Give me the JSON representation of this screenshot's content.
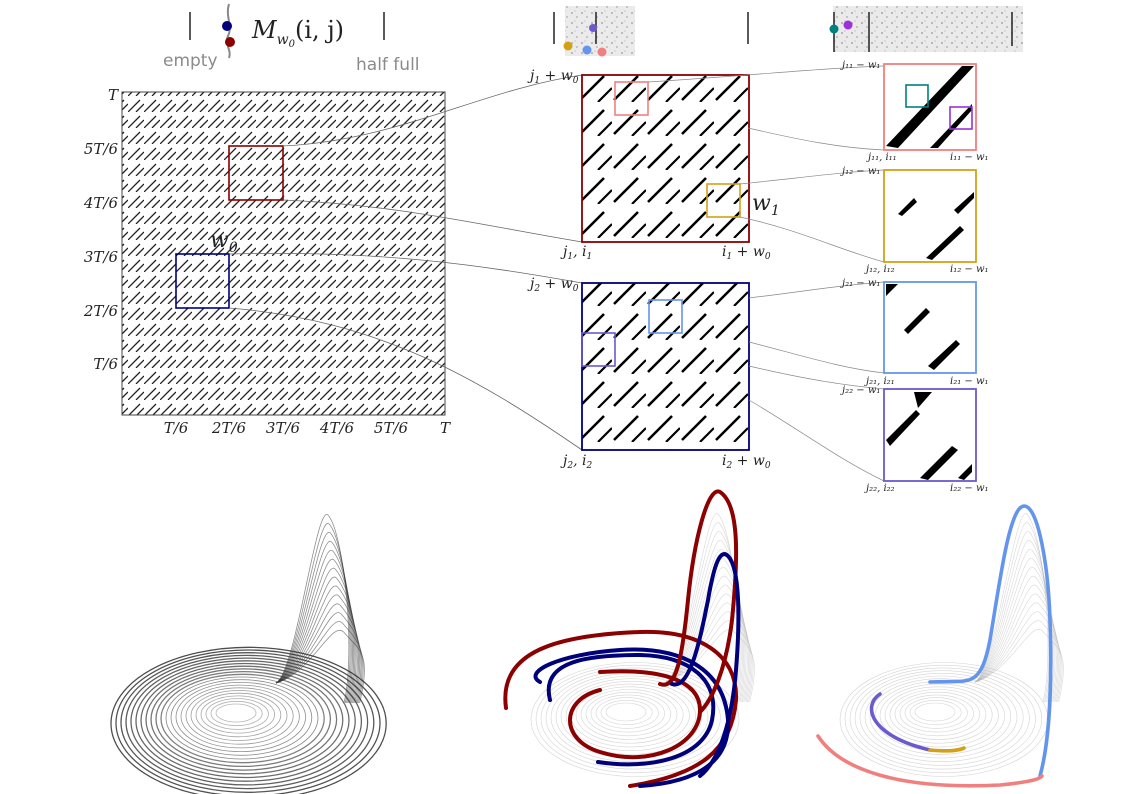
{
  "header": {
    "formula": "M",
    "formula_sub": "w",
    "formula_sub2": "0",
    "formula_args": "(i, j)",
    "empty_label": "empty",
    "half_full_label": "half full"
  },
  "main_matrix": {
    "y_ticks": [
      "T",
      "5T/6",
      "4T/6",
      "3T/6",
      "2T/6",
      "T/6"
    ],
    "x_ticks": [
      "T/6",
      "2T/6",
      "3T/6",
      "4T/6",
      "5T/6",
      "T"
    ],
    "window_label": "w",
    "window_sub": "0"
  },
  "zoom_top": {
    "top_left": "j",
    "top_left_sub": "1",
    "top_left_rest": " + w",
    "top_left_sub2": "0",
    "bottom_left": "j",
    "bottom_left_sub": "1",
    "bottom_left_rest": ", i",
    "bottom_left_sub2": "1",
    "bottom_right": "i",
    "bottom_right_sub": "1",
    "bottom_right_rest": " + w",
    "bottom_right_sub2": "0",
    "window_label": "w",
    "window_sub": "1"
  },
  "zoom_bottom": {
    "top_left": "j",
    "top_left_sub": "2",
    "top_left_rest": " + w",
    "top_left_sub2": "0",
    "bottom_left": "j",
    "bottom_left_sub": "2",
    "bottom_left_rest": ", i",
    "bottom_left_sub2": "2",
    "bottom_right": "i",
    "bottom_right_sub": "2",
    "bottom_right_rest": " + w",
    "bottom_right_sub2": "0"
  },
  "small_panels": [
    {
      "top_left": "j₁₁ − w₁",
      "bottom_left": "j₁₁, i₁₁",
      "bottom_right": "i₁₁ − w₁",
      "color": "#f08080"
    },
    {
      "top_left": "j₁₂ − w₁",
      "bottom_left": "j₁₂, i₁₂",
      "bottom_right": "i₁₂ − w₁",
      "color": "#d4a017"
    },
    {
      "top_left": "j₂₁ − w₁",
      "bottom_left": "j₂₁, i₂₁",
      "bottom_right": "i₂₁ − w₁",
      "color": "#6495ed"
    },
    {
      "top_left": "j₂₂ − w₁",
      "bottom_left": "j₂₂, i₂₂",
      "bottom_right": "i₂₂ − w₁",
      "color": "#6a5acd"
    }
  ],
  "colors": {
    "red": "#8b0000",
    "navy": "#00007a",
    "salmon": "#f08080",
    "gold": "#d4a017",
    "cornflower": "#6495ed",
    "slate": "#6a5acd",
    "teal": "#008080",
    "violet": "#9b30d9"
  }
}
